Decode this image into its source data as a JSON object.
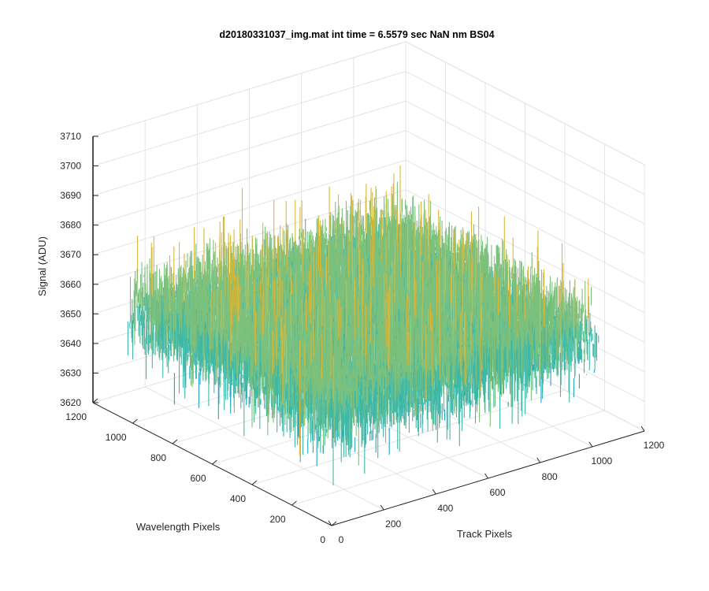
{
  "chart_data": {
    "type": "surface",
    "title": "d20180331037_img.mat int time = 6.5579 sec  NaN nm BS04",
    "xlabel": "Track Pixels",
    "ylabel": "Wavelength Pixels",
    "zlabel": "Signal (ADU)",
    "xlim": [
      0,
      1200
    ],
    "ylim": [
      0,
      1200
    ],
    "zlim": [
      3620,
      3710
    ],
    "x_ticks": [
      "0",
      "200",
      "400",
      "600",
      "800",
      "1000",
      "1200"
    ],
    "y_ticks": [
      "0",
      "200",
      "400",
      "600",
      "800",
      "1000",
      "1200"
    ],
    "z_ticks": [
      "3620",
      "3630",
      "3640",
      "3650",
      "3660",
      "3670",
      "3680",
      "3690",
      "3700",
      "3710"
    ],
    "x_extent": [
      0,
      1024
    ],
    "y_extent": [
      0,
      1024
    ],
    "z_mean": 3657,
    "z_range": [
      3625,
      3688
    ],
    "colormap": [
      "#0072bd",
      "#1fa5c6",
      "#3fb8a6",
      "#7cc07d",
      "#d9b83a"
    ],
    "grid": true
  }
}
